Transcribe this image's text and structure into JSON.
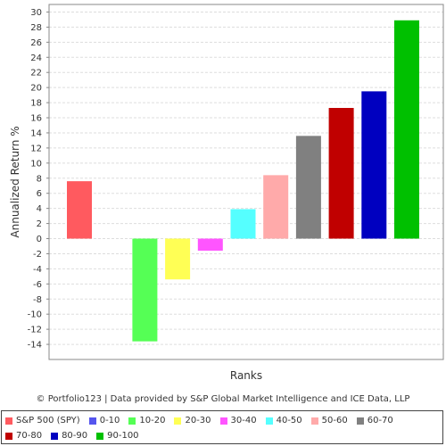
{
  "chart_data": {
    "type": "bar",
    "ylabel": "Annualized Return %",
    "xlabel": "Ranks",
    "credit": "© Portfolio123 | Data provided by S&P Global Market Intelligence and ICE Data, LLP",
    "ylim": [
      -16,
      31
    ],
    "yticks": [
      30,
      28,
      26,
      24,
      22,
      20,
      18,
      16,
      14,
      12,
      10,
      8,
      6,
      4,
      2,
      0,
      -2,
      -4,
      -6,
      -8,
      -10,
      -12,
      -14
    ],
    "grid": true,
    "legend_position": "bottom",
    "series": [
      {
        "name": "S&P 500 (SPY)",
        "value": 7.6,
        "color": "#ff5a5f"
      },
      {
        "name": "0-10",
        "value": 0,
        "color": "#5555ee"
      },
      {
        "name": "10-20",
        "value": -13.6,
        "color": "#55ff55"
      },
      {
        "name": "20-30",
        "value": -5.4,
        "color": "#ffff55"
      },
      {
        "name": "30-40",
        "value": -1.6,
        "color": "#ff55ff"
      },
      {
        "name": "40-50",
        "value": 3.9,
        "color": "#55ffff"
      },
      {
        "name": "50-60",
        "value": 8.4,
        "color": "#ffaaaa"
      },
      {
        "name": "60-70",
        "value": 13.6,
        "color": "#808080"
      },
      {
        "name": "70-80",
        "value": 17.3,
        "color": "#c00000"
      },
      {
        "name": "80-90",
        "value": 19.5,
        "color": "#0000c0"
      },
      {
        "name": "90-100",
        "value": 28.9,
        "color": "#00c000"
      }
    ]
  }
}
